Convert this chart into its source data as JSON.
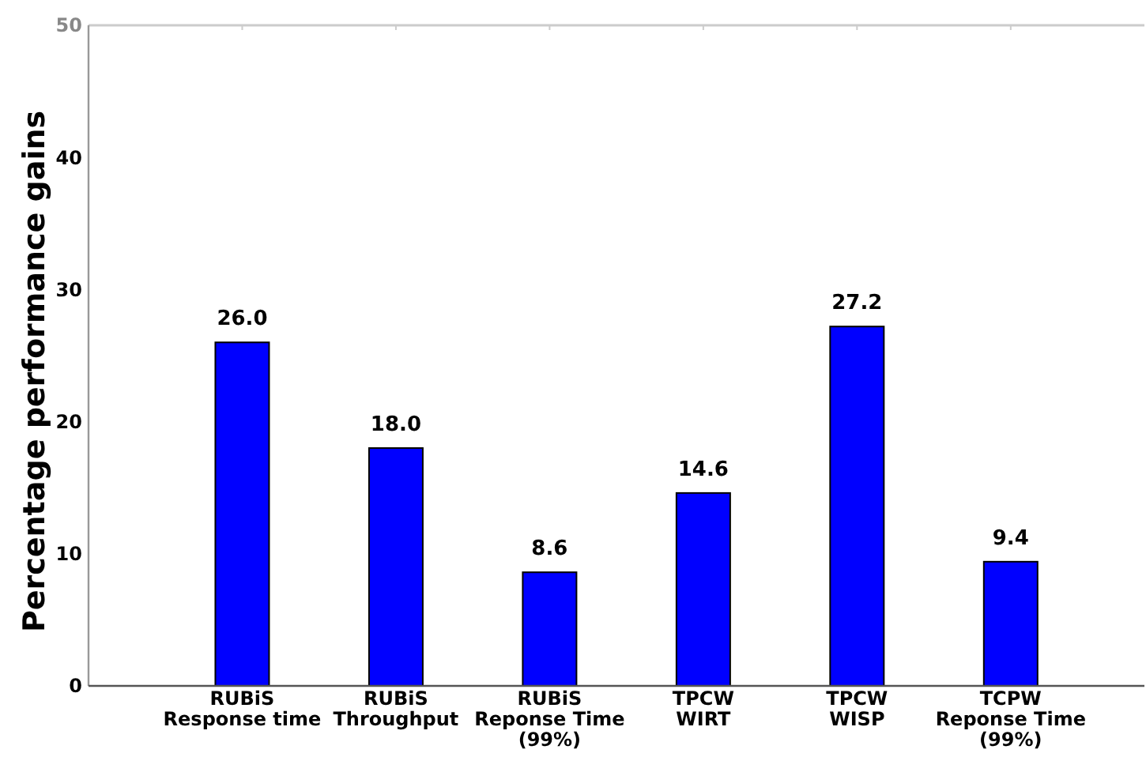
{
  "chart_data": {
    "type": "bar",
    "ylabel": "Percentage performance gains",
    "categories": [
      "RUBiS\nResponse time",
      "RUBiS\nThroughput",
      "RUBiS\nReponse Time\n(99%)",
      "TPCW\nWIRT",
      "TPCW\nWISP",
      "TCPW\nReponse Time\n(99%)"
    ],
    "values": [
      26.0,
      18.0,
      8.6,
      14.6,
      27.2,
      9.4
    ],
    "value_labels": [
      "26.0",
      "18.0",
      "8.6",
      "14.6",
      "27.2",
      "9.4"
    ],
    "color": "#0000ff",
    "ylim": [
      0,
      50
    ],
    "yticks": [
      0,
      10,
      20,
      30,
      40,
      50
    ],
    "grid": false
  }
}
